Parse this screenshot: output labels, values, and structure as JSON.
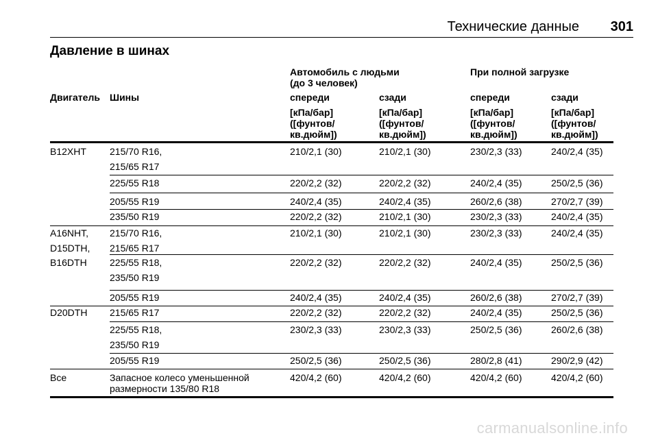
{
  "header": {
    "title": "Технические данные",
    "page_number": "301"
  },
  "section_title": "Давление в шинах",
  "table": {
    "group_headers": {
      "passengers": [
        "Автомобиль с людьми",
        "(до 3 человек)"
      ],
      "full_load": "При полной загрузке"
    },
    "columns": {
      "engine": "Двигатель",
      "tires": "Шины",
      "front1": "спереди",
      "rear1": "сзади",
      "front2": "спереди",
      "rear2": "сзади"
    },
    "units": [
      "[кПа/бар]",
      "([фунтов/",
      "кв.дюйм])"
    ],
    "rows": [
      {
        "engine": [
          "B12XHT"
        ],
        "tires": [
          "215/70 R16,",
          "215/65 R17"
        ],
        "v": [
          "210/2,1 (30)",
          "210/2,1 (30)",
          "230/2,3 (33)",
          "240/2,4 (35)"
        ]
      },
      {
        "engine": [],
        "tires": [
          "225/55 R18"
        ],
        "v": [
          "220/2,2 (32)",
          "220/2,2 (32)",
          "240/2,4 (35)",
          "250/2,5 (36)"
        ]
      },
      {
        "engine": [],
        "tires": [
          "205/55 R19"
        ],
        "v": [
          "240/2,4 (35)",
          "240/2,4 (35)",
          "260/2,6 (38)",
          "270/2,7 (39)"
        ]
      },
      {
        "engine": [],
        "tires": [
          "235/50 R19"
        ],
        "v": [
          "220/2,2 (32)",
          "210/2,1 (30)",
          "230/2,3 (33)",
          "240/2,4 (35)"
        ]
      },
      {
        "engine": [
          "A16NHT,",
          "D15DTH,"
        ],
        "tires": [
          "215/70 R16,",
          "215/65 R17"
        ],
        "v": [
          "210/2,1 (30)",
          "210/2,1 (30)",
          "230/2,3 (33)",
          "240/2,4 (35)"
        ]
      },
      {
        "engine": [
          "B16DTH"
        ],
        "tires": [
          "225/55 R18,",
          "235/50 R19"
        ],
        "v": [
          "220/2,2 (32)",
          "220/2,2 (32)",
          "240/2,4 (35)",
          "250/2,5 (36)"
        ]
      },
      {
        "engine": [],
        "tires": [
          "205/55 R19"
        ],
        "v": [
          "240/2,4 (35)",
          "240/2,4 (35)",
          "260/2,6 (38)",
          "270/2,7 (39)"
        ]
      },
      {
        "engine": [
          "D20DTH"
        ],
        "tires": [
          "215/65 R17"
        ],
        "v": [
          "220/2,2 (32)",
          "220/2,2 (32)",
          "240/2,4 (35)",
          "250/2,5 (36)"
        ]
      },
      {
        "engine": [],
        "tires": [
          "225/55 R18,",
          "235/50 R19"
        ],
        "v": [
          "230/2,3 (33)",
          "230/2,3 (33)",
          "250/2,5 (36)",
          "260/2,6 (38)"
        ]
      },
      {
        "engine": [],
        "tires": [
          "205/55 R19"
        ],
        "v": [
          "250/2,5 (36)",
          "250/2,5 (36)",
          "280/2,8 (41)",
          "290/2,9 (42)"
        ]
      },
      {
        "engine": [
          "Все"
        ],
        "tires": [
          "Запасное колесо уменьшенной",
          "размерности 135/80 R18"
        ],
        "v": [
          "420/4,2 (60)",
          "420/4,2 (60)",
          "420/4,2 (60)",
          "420/4,2 (60)"
        ]
      }
    ]
  },
  "watermark": "carmanualsonline.info"
}
